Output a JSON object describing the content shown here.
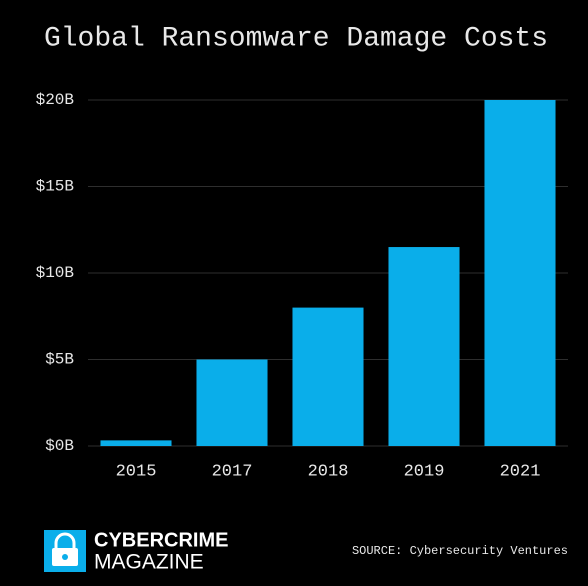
{
  "chart_data": {
    "type": "bar",
    "title": "Global Ransomware Damage Costs",
    "categories": [
      "2015",
      "2017",
      "2018",
      "2019",
      "2021"
    ],
    "values": [
      0.325,
      5,
      8,
      11.5,
      20
    ],
    "color": "#0aaeea",
    "ylim": [
      0,
      20
    ],
    "yticks": [
      {
        "value": 0,
        "label": "$0B"
      },
      {
        "value": 5,
        "label": "$5B"
      },
      {
        "value": 10,
        "label": "$10B"
      },
      {
        "value": 15,
        "label": "$15B"
      },
      {
        "value": 20,
        "label": "$20B"
      }
    ],
    "grid": true,
    "brand": {
      "line1": "CYBERCRIME",
      "line2": "MAGAZINE"
    },
    "source": "SOURCE: Cybersecurity Ventures"
  }
}
